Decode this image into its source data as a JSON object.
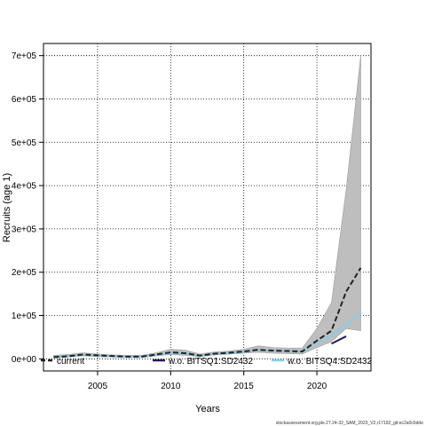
{
  "chart_data": {
    "type": "line",
    "xlabel": "Years",
    "ylabel": "Recruits (age 1)",
    "xlim": [
      2001.3,
      2023.7
    ],
    "ylim": [
      -28000,
      728000
    ],
    "x_ticks": [
      2005,
      2010,
      2015,
      2020
    ],
    "x_tick_labels": [
      "2005",
      "2010",
      "2015",
      "2020"
    ],
    "y_ticks": [
      0,
      100000,
      200000,
      300000,
      400000,
      500000,
      600000,
      700000
    ],
    "y_tick_labels": [
      "0e+00",
      "1e+05",
      "2e+05",
      "3e+05",
      "4e+05",
      "5e+05",
      "6e+05",
      "7e+05"
    ],
    "grid": true,
    "legend_position": "bottom",
    "band": {
      "x": [
        2002,
        2003,
        2004,
        2005,
        2006,
        2007,
        2008,
        2009,
        2010,
        2011,
        2012,
        2013,
        2014,
        2015,
        2016,
        2017,
        2018,
        2019,
        2020,
        2021,
        2022,
        2023
      ],
      "lower": [
        2000,
        4000,
        7000,
        5000,
        4000,
        3000,
        3000,
        7000,
        10000,
        8000,
        5000,
        9000,
        11000,
        13000,
        15000,
        13000,
        12000,
        11000,
        26000,
        40000,
        70000,
        65000
      ],
      "upper": [
        8000,
        10000,
        14000,
        11000,
        9000,
        8000,
        8000,
        14000,
        22000,
        20000,
        11000,
        16000,
        18000,
        22000,
        30000,
        26000,
        25000,
        25000,
        70000,
        130000,
        390000,
        700000
      ]
    },
    "series": [
      {
        "name": "current",
        "color": "#222222",
        "dash": "6,3",
        "values": [
          4000,
          6000,
          10000,
          8000,
          6500,
          5000,
          5000,
          10000,
          15000,
          13000,
          7500,
          12000,
          14000,
          17000,
          21000,
          19000,
          18000,
          17000,
          42000,
          65000,
          155000,
          210000
        ]
      },
      {
        "name": "w.o. BITSQ1:SD2432",
        "color": "#1e1e5c",
        "dash": "",
        "values": [
          null,
          null,
          null,
          null,
          null,
          null,
          null,
          null,
          null,
          null,
          null,
          null,
          null,
          null,
          null,
          null,
          null,
          null,
          null,
          35000,
          52000,
          null
        ]
      },
      {
        "name": "w.o. BITSQ4:SD2432",
        "color": "#87ceeb",
        "dash": "",
        "values": [
          4500,
          6500,
          9500,
          7500,
          6000,
          5000,
          5000,
          9500,
          14000,
          12500,
          7000,
          11500,
          13500,
          16500,
          20000,
          18500,
          17500,
          16500,
          38000,
          55000,
          80000,
          107000
        ]
      }
    ],
    "legend": [
      {
        "label": "current",
        "series": 0
      },
      {
        "label": "w.o. BITSQ1:SD2432",
        "series": 1
      },
      {
        "label": "w.o. BITSQ4:SD2432",
        "series": 2
      }
    ]
  },
  "footer": "stockassessment.org,ple.27.24-32_SAM_2023_V2,r17192_git:ec2a0c6dde"
}
